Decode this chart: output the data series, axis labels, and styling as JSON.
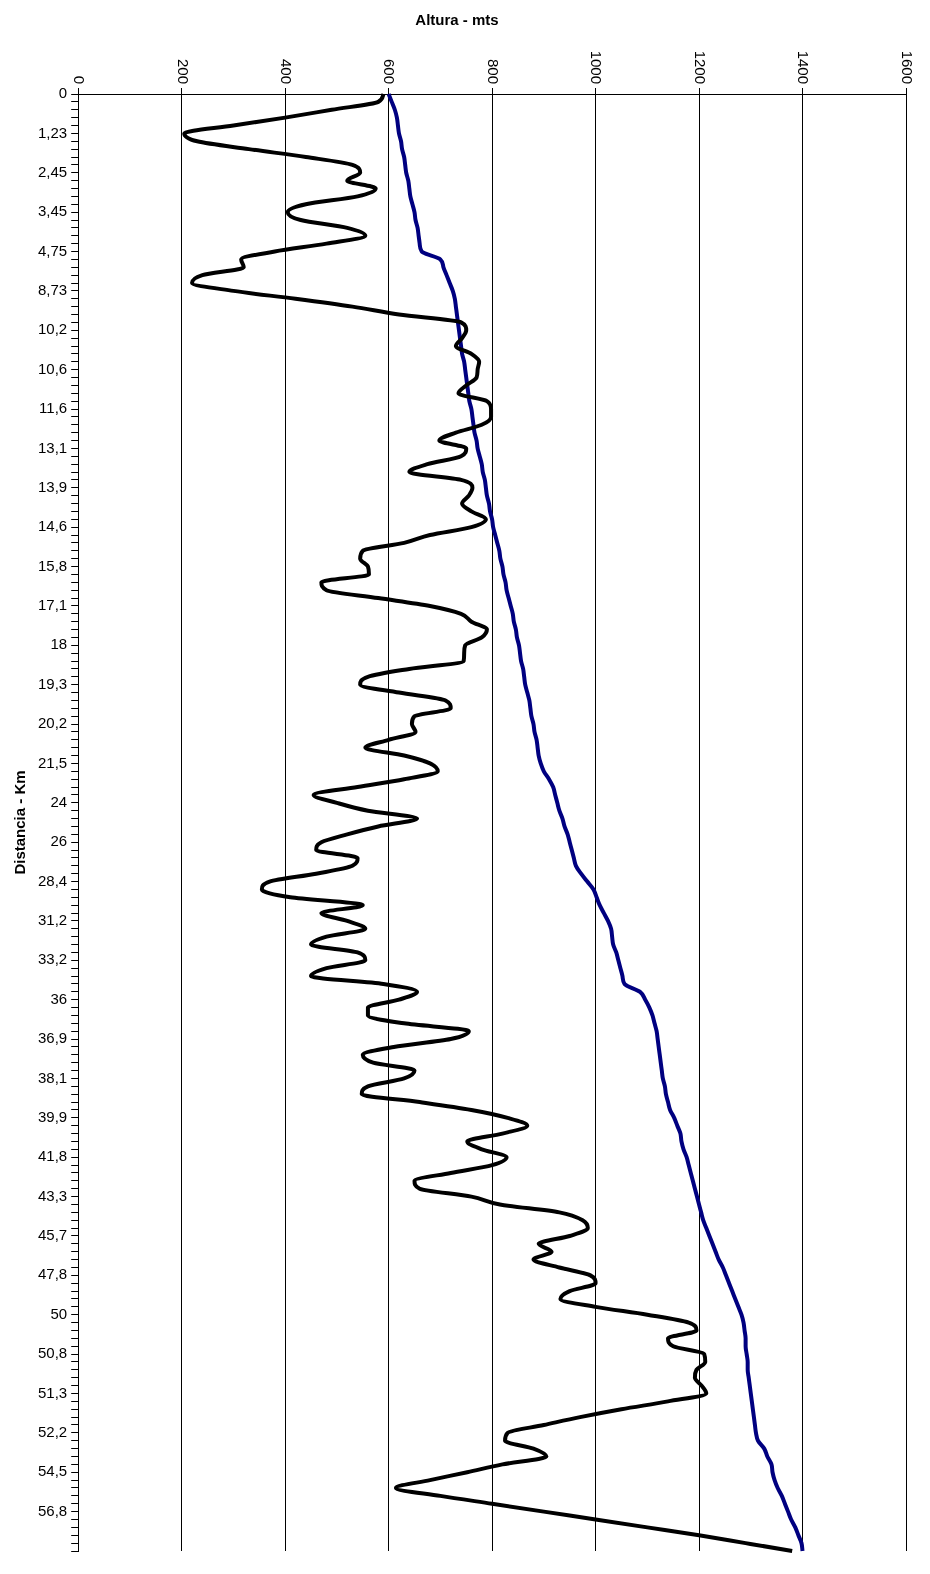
{
  "chart_data": {
    "type": "line",
    "orientation": "horizontal",
    "xlabel": "Altura - mts",
    "ylabel": "Distancia - Km",
    "categories": [
      "0",
      null,
      null,
      null,
      null,
      "1,23",
      null,
      null,
      null,
      null,
      "2,45",
      null,
      null,
      null,
      null,
      "3,45",
      null,
      null,
      null,
      null,
      "4,75",
      null,
      null,
      null,
      null,
      "8,73",
      null,
      null,
      null,
      null,
      "10,2",
      null,
      null,
      null,
      null,
      "10,6",
      null,
      null,
      null,
      null,
      "11,6",
      null,
      null,
      null,
      null,
      "13,1",
      null,
      null,
      null,
      null,
      "13,9",
      null,
      null,
      null,
      null,
      "14,6",
      null,
      null,
      null,
      null,
      "15,8",
      null,
      null,
      null,
      null,
      "17,1",
      null,
      null,
      null,
      null,
      "18",
      null,
      null,
      null,
      null,
      "19,3",
      null,
      null,
      null,
      null,
      "20,2",
      null,
      null,
      null,
      null,
      "21,5",
      null,
      null,
      null,
      null,
      "24",
      null,
      null,
      null,
      null,
      "26",
      null,
      null,
      null,
      null,
      "28,4",
      null,
      null,
      null,
      null,
      "31,2",
      null,
      null,
      null,
      null,
      "33,2",
      null,
      null,
      null,
      null,
      "36",
      null,
      null,
      null,
      null,
      "36,9",
      null,
      null,
      null,
      null,
      "38,1",
      null,
      null,
      null,
      null,
      "39,9",
      null,
      null,
      null,
      null,
      "41,8",
      null,
      null,
      null,
      null,
      "43,3",
      null,
      null,
      null,
      null,
      "45,7",
      null,
      null,
      null,
      null,
      "47,8",
      null,
      null,
      null,
      null,
      "50",
      null,
      null,
      null,
      null,
      "50,8",
      null,
      null,
      null,
      null,
      "51,3",
      null,
      null,
      null,
      null,
      "52,2",
      null,
      null,
      null,
      null,
      "54,5",
      null,
      null,
      null,
      null,
      "56,8",
      null,
      null,
      null,
      null,
      null
    ],
    "series": [
      {
        "color": "#000000",
        "values": [
          590,
          580,
          490,
          400,
          300,
          205,
          230,
          330,
          440,
          530,
          545,
          520,
          575,
          540,
          440,
          405,
          430,
          520,
          555,
          480,
          380,
          315,
          320,
          240,
          220,
          300,
          420,
          530,
          620,
          740,
          750,
          742,
          730,
          760,
          775,
          772,
          770,
          750,
          735,
          790,
          798,
          798,
          780,
          730,
          698,
          750,
          740,
          675,
          640,
          740,
          762,
          755,
          742,
          760,
          788,
          760,
          680,
          630,
          550,
          545,
          560,
          562,
          470,
          480,
          580,
          680,
          740,
          760,
          790,
          780,
          748,
          746,
          745,
          640,
          560,
          545,
          620,
          710,
          720,
          650,
          645,
          652,
          600,
          555,
          630,
          680,
          695,
          630,
          540,
          455,
          500,
          560,
          655,
          580,
          520,
          470,
          460,
          540,
          530,
          460,
          370,
          355,
          410,
          550,
          470,
          520,
          555,
          480,
          450,
          540,
          555,
          480,
          450,
          590,
          655,
          620,
          560,
          560,
          630,
          755,
          720,
          610,
          550,
          570,
          650,
          630,
          560,
          548,
          660,
          760,
          830,
          868,
          820,
          752,
          780,
          828,
          800,
          720,
          650,
          660,
          760,
          815,
          930,
          975,
          985,
          950,
          890,
          915,
          880,
          930,
          990,
          1000,
          950,
          932,
          1000,
          1100,
          1180,
          1195,
          1140,
          1150,
          1210,
          1212,
          1195,
          1192,
          1205,
          1214,
          1140,
          1050,
          970,
          900,
          830,
          825,
          880,
          905,
          820,
          752,
          680,
          614,
          700,
          800,
          900,
          1000,
          1100,
          1200,
          1290,
          1380
        ]
      },
      {
        "color": "#000080",
        "values": [
          600,
          606,
          612,
          616,
          618,
          620,
          624,
          626,
          630,
          632,
          634,
          638,
          640,
          642,
          646,
          650,
          652,
          656,
          658,
          660,
          664,
          700,
          706,
          712,
          718,
          724,
          728,
          730,
          732,
          734,
          736,
          738,
          740,
          742,
          746,
          748,
          750,
          752,
          754,
          756,
          760,
          762,
          764,
          766,
          770,
          772,
          776,
          780,
          782,
          786,
          788,
          790,
          794,
          796,
          800,
          802,
          806,
          810,
          814,
          816,
          820,
          822,
          826,
          828,
          832,
          836,
          840,
          842,
          846,
          848,
          852,
          854,
          856,
          860,
          862,
          864,
          868,
          872,
          874,
          876,
          880,
          882,
          886,
          888,
          890,
          894,
          900,
          910,
          918,
          922,
          926,
          930,
          936,
          940,
          946,
          950,
          954,
          958,
          962,
          972,
          984,
          996,
          1002,
          1008,
          1016,
          1024,
          1030,
          1032,
          1034,
          1040,
          1044,
          1048,
          1052,
          1056,
          1086,
          1096,
          1104,
          1110,
          1114,
          1118,
          1120,
          1122,
          1124,
          1126,
          1128,
          1130,
          1134,
          1136,
          1140,
          1144,
          1152,
          1158,
          1164,
          1166,
          1170,
          1176,
          1180,
          1184,
          1188,
          1192,
          1196,
          1200,
          1204,
          1208,
          1214,
          1220,
          1226,
          1232,
          1238,
          1246,
          1252,
          1258,
          1264,
          1270,
          1276,
          1282,
          1286,
          1288,
          1290,
          1290,
          1292,
          1294,
          1294,
          1296,
          1298,
          1300,
          1302,
          1304,
          1306,
          1308,
          1310,
          1314,
          1326,
          1332,
          1340,
          1342,
          1346,
          1352,
          1360,
          1366,
          1372,
          1378,
          1386,
          1392,
          1398,
          1400
        ]
      }
    ],
    "xlim": [
      0,
      1600
    ],
    "xticks": [
      0,
      200,
      400,
      600,
      800,
      1000,
      1200,
      1400,
      1600
    ],
    "grid": "x",
    "legend": false,
    "marker": "none"
  }
}
